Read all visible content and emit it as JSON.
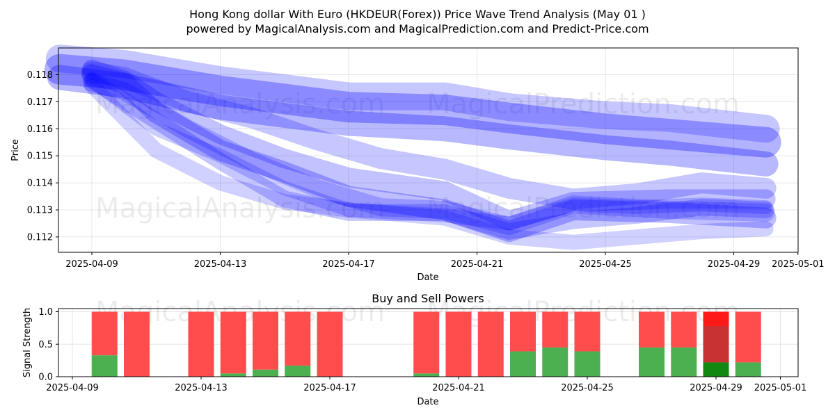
{
  "title_line1": "Hong Kong dollar With Euro (HKDEUR(Forex)) Price Wave Trend Analysis (May 01 )",
  "title_line2": "powered by MagicalAnalysis.com and MagicalPrediction.com and Predict-Price.com",
  "watermarks": [
    "MagicalAnalysis.com",
    "MagicalPrediction.com"
  ],
  "colors": {
    "wave": "#0000ff",
    "buy": "#4caf50",
    "sell": "#ff4d4d",
    "buy_dark": "#118811",
    "sell_dark": "#c83232",
    "sell_bright": "#ff1a1a"
  },
  "chart_data": [
    {
      "type": "line",
      "title": "",
      "xlabel": "Date",
      "ylabel": "Price",
      "x_ticks": [
        "2025-04-09",
        "2025-04-13",
        "2025-04-17",
        "2025-04-21",
        "2025-04-25",
        "2025-04-29",
        "2025-05-01"
      ],
      "y_ticks": [
        "0.112",
        "0.113",
        "0.114",
        "0.115",
        "0.116",
        "0.117",
        "0.118"
      ],
      "xlim": [
        "2025-04-07",
        "2025-05-01"
      ],
      "ylim": [
        0.1114,
        0.1189
      ],
      "grid": true,
      "series": [
        {
          "x": [
            "2025-04-08",
            "2025-04-10",
            "2025-04-13",
            "2025-04-17",
            "2025-04-20",
            "2025-04-22",
            "2025-04-25",
            "2025-04-27",
            "2025-04-30"
          ],
          "y": [
            0.1182,
            0.118,
            0.1174,
            0.1168,
            0.1167,
            0.1164,
            0.116,
            0.1158,
            0.1155
          ]
        },
        {
          "x": [
            "2025-04-08",
            "2025-04-10",
            "2025-04-13",
            "2025-04-17",
            "2025-04-20",
            "2025-04-22",
            "2025-04-25",
            "2025-04-27",
            "2025-04-30"
          ],
          "y": [
            0.1186,
            0.1184,
            0.1178,
            0.1172,
            0.1172,
            0.1168,
            0.1165,
            0.1164,
            0.116
          ]
        },
        {
          "x": [
            "2025-04-08",
            "2025-04-10",
            "2025-04-13",
            "2025-04-17",
            "2025-04-20",
            "2025-04-22",
            "2025-04-25",
            "2025-04-27",
            "2025-04-30"
          ],
          "y": [
            0.1179,
            0.1176,
            0.1168,
            0.1162,
            0.116,
            0.1157,
            0.1153,
            0.1151,
            0.1147
          ]
        },
        {
          "x": [
            "2025-04-09",
            "2025-04-10",
            "2025-04-11",
            "2025-04-13",
            "2025-04-15",
            "2025-04-17",
            "2025-04-20",
            "2025-04-22",
            "2025-04-24",
            "2025-04-27",
            "2025-04-30"
          ],
          "y": [
            0.118,
            0.1177,
            0.1166,
            0.1152,
            0.1144,
            0.1135,
            0.113,
            0.1122,
            0.113,
            0.1129,
            0.1127
          ]
        },
        {
          "x": [
            "2025-04-09",
            "2025-04-10",
            "2025-04-11",
            "2025-04-13",
            "2025-04-15",
            "2025-04-17",
            "2025-04-20",
            "2025-04-22",
            "2025-04-24",
            "2025-04-27",
            "2025-04-30"
          ],
          "y": [
            0.1182,
            0.1178,
            0.117,
            0.1158,
            0.1149,
            0.1142,
            0.1137,
            0.1126,
            0.1133,
            0.1134,
            0.1134
          ]
        },
        {
          "x": [
            "2025-04-09",
            "2025-04-10",
            "2025-04-12",
            "2025-04-14",
            "2025-04-16",
            "2025-04-18",
            "2025-04-20",
            "2025-04-22",
            "2025-04-24",
            "2025-04-27",
            "2025-04-30"
          ],
          "y": [
            0.1177,
            0.1174,
            0.116,
            0.1148,
            0.1138,
            0.1131,
            0.113,
            0.1124,
            0.1132,
            0.113,
            0.1129
          ]
        },
        {
          "x": [
            "2025-04-09",
            "2025-04-11",
            "2025-04-13",
            "2025-04-15",
            "2025-04-17",
            "2025-04-20",
            "2025-04-22",
            "2025-04-24",
            "2025-04-26",
            "2025-04-28",
            "2025-04-30"
          ],
          "y": [
            0.1178,
            0.1163,
            0.1148,
            0.1134,
            0.1129,
            0.1129,
            0.1122,
            0.1126,
            0.1128,
            0.1131,
            0.113
          ]
        },
        {
          "x": [
            "2025-04-09",
            "2025-04-11",
            "2025-04-13",
            "2025-04-15",
            "2025-04-17",
            "2025-04-20",
            "2025-04-22",
            "2025-04-24",
            "2025-04-26",
            "2025-04-28",
            "2025-04-30"
          ],
          "y": [
            0.1176,
            0.1152,
            0.114,
            0.1133,
            0.113,
            0.1127,
            0.112,
            0.1118,
            0.112,
            0.1122,
            0.1123
          ]
        },
        {
          "x": [
            "2025-04-09",
            "2025-04-10",
            "2025-04-12",
            "2025-04-14",
            "2025-04-16",
            "2025-04-18",
            "2025-04-20",
            "2025-04-22",
            "2025-04-24",
            "2025-04-26",
            "2025-04-28",
            "2025-04-30"
          ],
          "y": [
            0.1181,
            0.1179,
            0.117,
            0.1164,
            0.1156,
            0.1149,
            0.1145,
            0.1138,
            0.1134,
            0.1136,
            0.114,
            0.1138
          ]
        },
        {
          "x": [
            "2025-04-09",
            "2025-04-11",
            "2025-04-13",
            "2025-04-15",
            "2025-04-17",
            "2025-04-20",
            "2025-04-22",
            "2025-04-24",
            "2025-04-26",
            "2025-04-28",
            "2025-04-30"
          ],
          "y": [
            0.1178,
            0.116,
            0.115,
            0.1138,
            0.113,
            0.1128,
            0.1125,
            0.1132,
            0.1131,
            0.1132,
            0.1131
          ]
        }
      ]
    },
    {
      "type": "bar",
      "title": "Buy and Sell Powers",
      "xlabel": "Date",
      "ylabel": "Signal Strength",
      "x_ticks": [
        "2025-04-09",
        "2025-04-13",
        "2025-04-17",
        "2025-04-21",
        "2025-04-25",
        "2025-04-29",
        "2025-05-01"
      ],
      "y_ticks": [
        "0.0",
        "0.5",
        "1.0"
      ],
      "ylim": [
        0,
        1.05
      ],
      "grid": true,
      "categories": [
        "2025-04-10",
        "2025-04-11",
        "2025-04-13",
        "2025-04-14",
        "2025-04-15",
        "2025-04-16",
        "2025-04-17",
        "2025-04-20",
        "2025-04-21",
        "2025-04-22",
        "2025-04-23",
        "2025-04-24",
        "2025-04-25",
        "2025-04-27",
        "2025-04-28",
        "2025-04-29",
        "2025-04-30"
      ],
      "series": [
        {
          "name": "Buy",
          "values": [
            0.33,
            0.0,
            0.0,
            0.05,
            0.11,
            0.17,
            0.0,
            0.05,
            0.0,
            0.0,
            0.39,
            0.45,
            0.39,
            0.45,
            0.45,
            0.22,
            0.22
          ]
        },
        {
          "name": "Sell",
          "values": [
            0.67,
            1.0,
            1.0,
            0.95,
            0.89,
            0.83,
            1.0,
            0.95,
            1.0,
            1.0,
            0.61,
            0.55,
            0.61,
            0.55,
            0.55,
            0.78,
            0.78
          ]
        }
      ]
    }
  ]
}
